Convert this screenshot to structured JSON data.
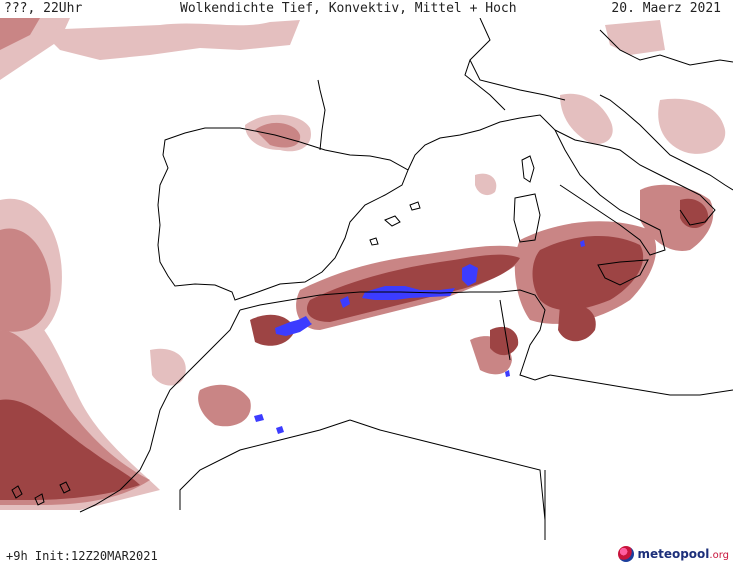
{
  "header": {
    "left": "???, 22Uhr",
    "title": "Wolkendichte  Tief, Konvektiv, Mittel + Hoch",
    "date": "20. Maerz 2021"
  },
  "footer": {
    "left": "+9h  Init:12Z20MAR2021",
    "logo_name": "meteopool",
    "logo_suffix": ".org"
  },
  "colors": {
    "cloud_light": "#e0b8b8",
    "cloud_mid": "#c47b7b",
    "cloud_dark": "#9a3c3c",
    "convective": "#3c3cff",
    "coastline": "#000000"
  }
}
